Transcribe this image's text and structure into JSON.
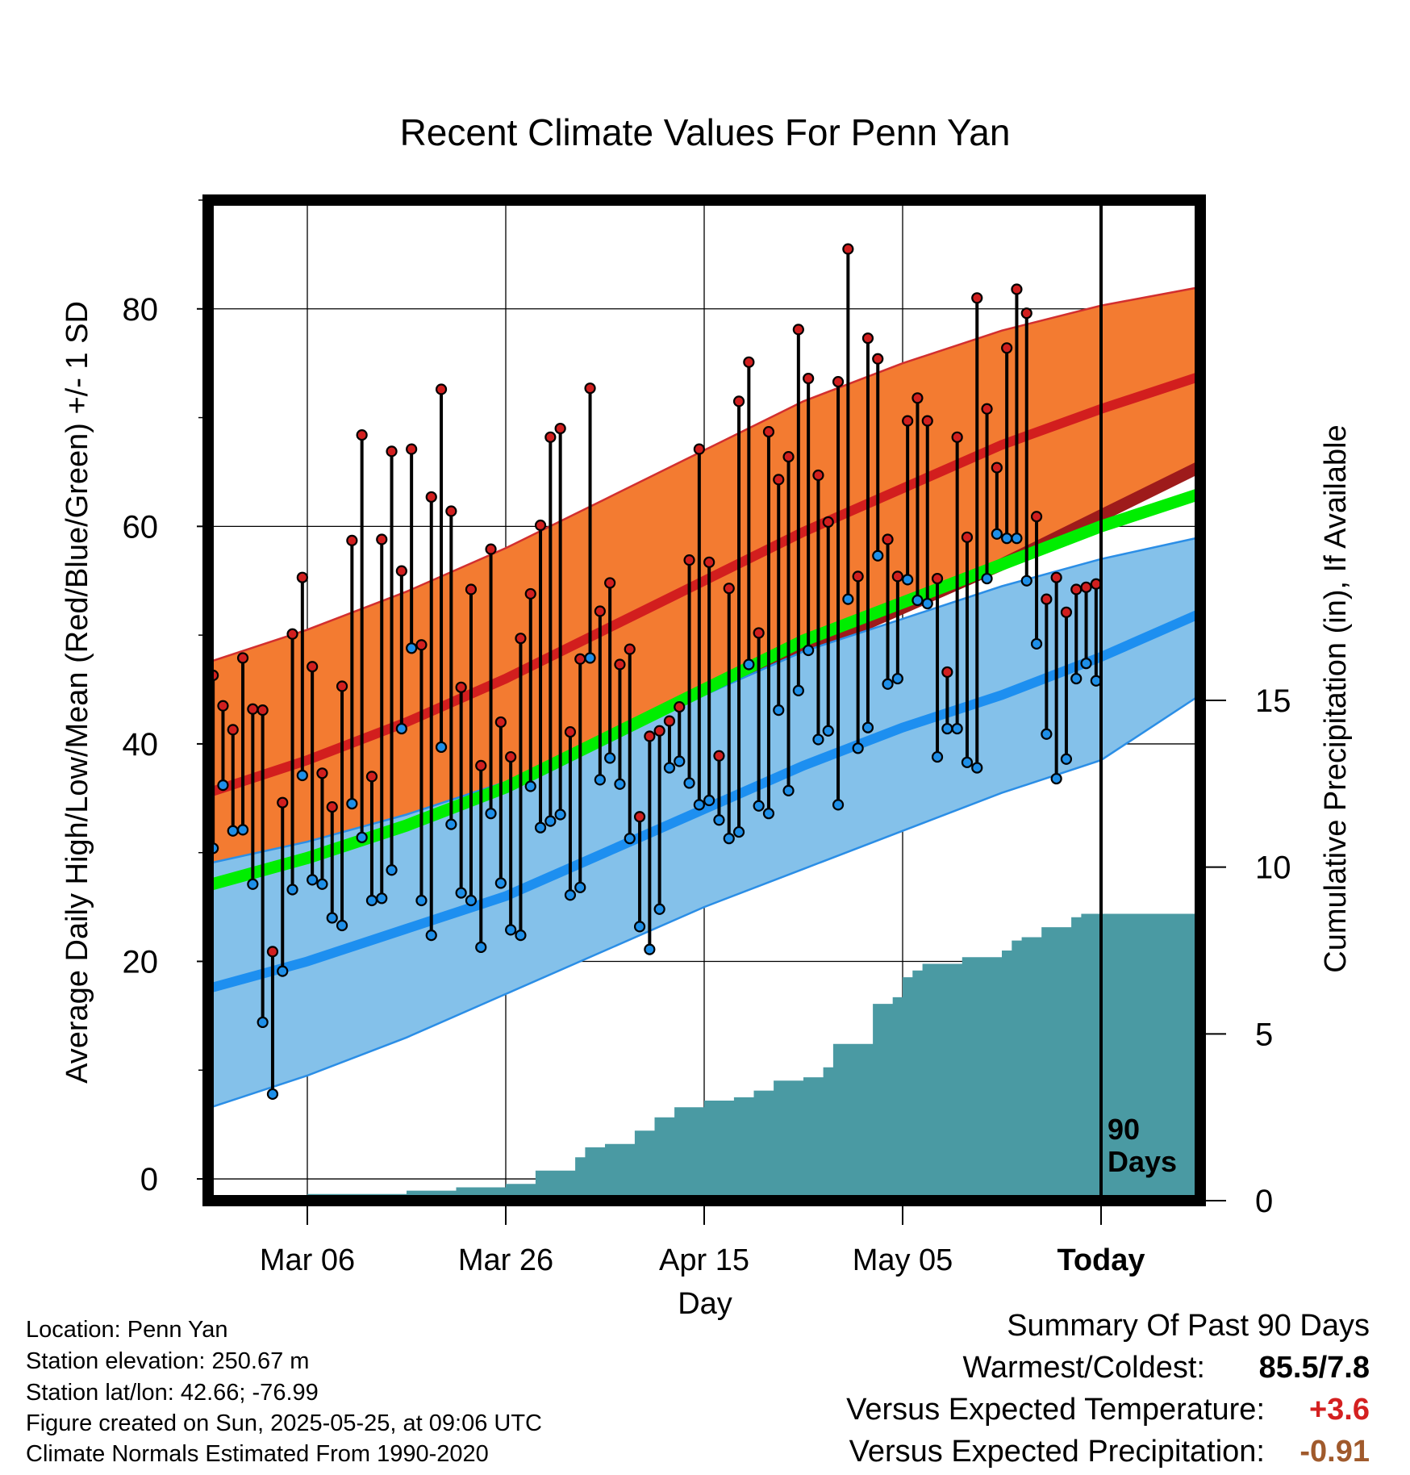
{
  "chart_data": {
    "type": "line",
    "title": "Recent Climate Values For Penn Yan",
    "xlabel": "Day",
    "ylabel": "Average Daily High/Low/Mean (Red/Blue/Green) +/- 1 SD",
    "y2label": "Cumulative Precipitation (in), If Available",
    "x_axis": {
      "start_date": "2025-02-24",
      "range_days": [
        0,
        100
      ],
      "tick_days": [
        10,
        30,
        50,
        70,
        90
      ],
      "tick_labels": [
        "Mar 06",
        "Mar 26",
        "Apr 15",
        "May 05",
        "Today"
      ]
    },
    "ylim": [
      -2,
      90
    ],
    "y_ticks": [
      0,
      20,
      40,
      60,
      80
    ],
    "y2lim": [
      0,
      30
    ],
    "y2_ticks": [
      0,
      5,
      10,
      15
    ],
    "today_marker": {
      "day": 90,
      "label_lines": [
        "90",
        "Days"
      ]
    },
    "normals": {
      "days": [
        0,
        10,
        20,
        30,
        40,
        50,
        60,
        70,
        80,
        90,
        100
      ],
      "high_mean": [
        35.5,
        38.5,
        42.0,
        46.0,
        50.5,
        55.0,
        59.5,
        63.5,
        67.5,
        70.8,
        73.8
      ],
      "high_upper": [
        47.5,
        50.5,
        54.0,
        58.0,
        62.5,
        67.0,
        71.5,
        75.0,
        78.0,
        80.3,
        82.0
      ],
      "high_lower": [
        25.5,
        28.0,
        31.5,
        35.0,
        39.5,
        44.0,
        48.5,
        52.5,
        56.5,
        61.0,
        65.5
      ],
      "mean_mean": [
        27.0,
        29.5,
        32.5,
        36.0,
        40.5,
        45.0,
        49.5,
        53.0,
        56.5,
        60.0,
        63.0
      ],
      "low_mean": [
        17.5,
        20.0,
        23.0,
        26.0,
        30.0,
        34.0,
        38.0,
        41.5,
        44.5,
        48.0,
        52.0
      ],
      "low_upper": [
        29.0,
        31.0,
        33.5,
        36.5,
        40.5,
        44.5,
        48.5,
        51.5,
        54.5,
        57.0,
        59.0
      ],
      "low_lower": [
        6.5,
        9.5,
        13.0,
        17.0,
        21.0,
        25.0,
        28.5,
        32.0,
        35.5,
        38.5,
        44.5
      ]
    },
    "series": [
      {
        "name": "High",
        "color": "#d11f1f",
        "values": [
          46.3,
          43.5,
          41.3,
          47.9,
          43.2,
          43.1,
          20.9,
          34.6,
          50.1,
          55.3,
          47.1,
          37.3,
          34.2,
          45.3,
          58.7,
          68.4,
          37.0,
          58.8,
          66.9,
          55.9,
          67.1,
          49.1,
          62.7,
          72.6,
          61.4,
          45.2,
          54.2,
          38.0,
          57.9,
          42.0,
          38.8,
          49.7,
          53.8,
          60.1,
          68.2,
          69.0,
          41.1,
          47.8,
          72.7,
          52.2,
          54.8,
          47.3,
          48.7,
          33.3,
          40.7,
          41.2,
          42.1,
          43.4,
          56.9,
          67.1,
          56.7,
          38.9,
          54.3,
          71.5,
          75.1,
          50.2,
          68.7,
          64.3,
          66.4,
          78.1,
          73.6,
          64.7,
          60.4,
          73.3,
          85.5,
          55.4,
          77.3,
          75.4,
          58.8,
          55.4,
          69.7,
          71.8,
          69.7,
          55.2,
          46.6,
          68.2,
          59.0,
          81.0,
          70.8,
          65.4,
          76.4,
          81.8,
          79.6,
          60.9,
          53.3,
          55.3,
          52.1,
          54.2,
          54.4,
          54.7
        ]
      },
      {
        "name": "Low",
        "color": "#1e8fe8",
        "values": [
          30.4,
          36.2,
          32.0,
          32.1,
          27.1,
          14.4,
          7.8,
          19.1,
          26.6,
          37.1,
          27.5,
          27.1,
          24.0,
          23.3,
          34.5,
          31.4,
          25.6,
          25.8,
          28.4,
          41.4,
          48.8,
          25.6,
          22.4,
          39.7,
          32.6,
          26.3,
          25.6,
          21.3,
          33.6,
          27.2,
          22.9,
          22.4,
          36.1,
          32.3,
          32.9,
          33.5,
          26.1,
          26.8,
          47.9,
          36.7,
          38.7,
          36.3,
          31.3,
          23.2,
          21.1,
          24.8,
          37.8,
          38.4,
          36.4,
          34.4,
          34.8,
          33.0,
          31.3,
          31.9,
          47.3,
          34.3,
          33.6,
          43.1,
          35.7,
          44.9,
          48.6,
          40.4,
          41.2,
          34.4,
          53.3,
          39.6,
          41.5,
          57.3,
          45.5,
          46.0,
          55.1,
          53.2,
          52.9,
          38.8,
          41.4,
          41.4,
          38.3,
          37.8,
          55.2,
          59.3,
          58.9,
          58.9,
          55.0,
          49.2,
          40.9,
          36.8,
          38.6,
          46.0,
          47.4,
          45.8
        ]
      }
    ],
    "precipitation": {
      "days": [
        0,
        9,
        10,
        20,
        25,
        30,
        33,
        37,
        38,
        40,
        43,
        45,
        47,
        50,
        53,
        55,
        57,
        60,
        62,
        63,
        65,
        67,
        69,
        70,
        71,
        72,
        76,
        78,
        80,
        81,
        82,
        84,
        86,
        87,
        88,
        90,
        100
      ],
      "values": [
        0,
        0,
        0.2,
        0.3,
        0.4,
        0.5,
        0.9,
        1.3,
        1.6,
        1.7,
        2.1,
        2.5,
        2.8,
        3.0,
        3.1,
        3.3,
        3.6,
        3.7,
        4.0,
        4.7,
        4.7,
        5.9,
        6.1,
        6.7,
        6.9,
        7.1,
        7.3,
        7.3,
        7.5,
        7.8,
        7.9,
        8.2,
        8.2,
        8.5,
        8.6,
        8.6,
        8.6
      ]
    },
    "colors": {
      "high_band": "#f37b31",
      "high_line": "#d21e1e",
      "mean_band": "#00ee00",
      "low_band": "#84c1ea",
      "low_line": "#1d8ff0",
      "precip": "#4a9aa3"
    }
  },
  "footer": {
    "location": "Location: Penn Yan",
    "elevation": "Station elevation: 250.67 m",
    "latlon": "Station lat/lon: 42.66; -76.99",
    "created": "Figure created on Sun, 2025-05-25, at 09:06 UTC",
    "normals": "Climate Normals Estimated From 1990-2020"
  },
  "summary": {
    "title": "Summary Of Past 90 Days",
    "warmest_coldest_label": "Warmest/Coldest:",
    "warmest_coldest_value": "85.5/7.8",
    "temp_label": "Versus Expected Temperature:",
    "temp_value": "+3.6",
    "temp_color": "#d42020",
    "precip_label": "Versus Expected Precipitation:",
    "precip_value": "-0.91",
    "precip_color": "#a05a2c"
  }
}
